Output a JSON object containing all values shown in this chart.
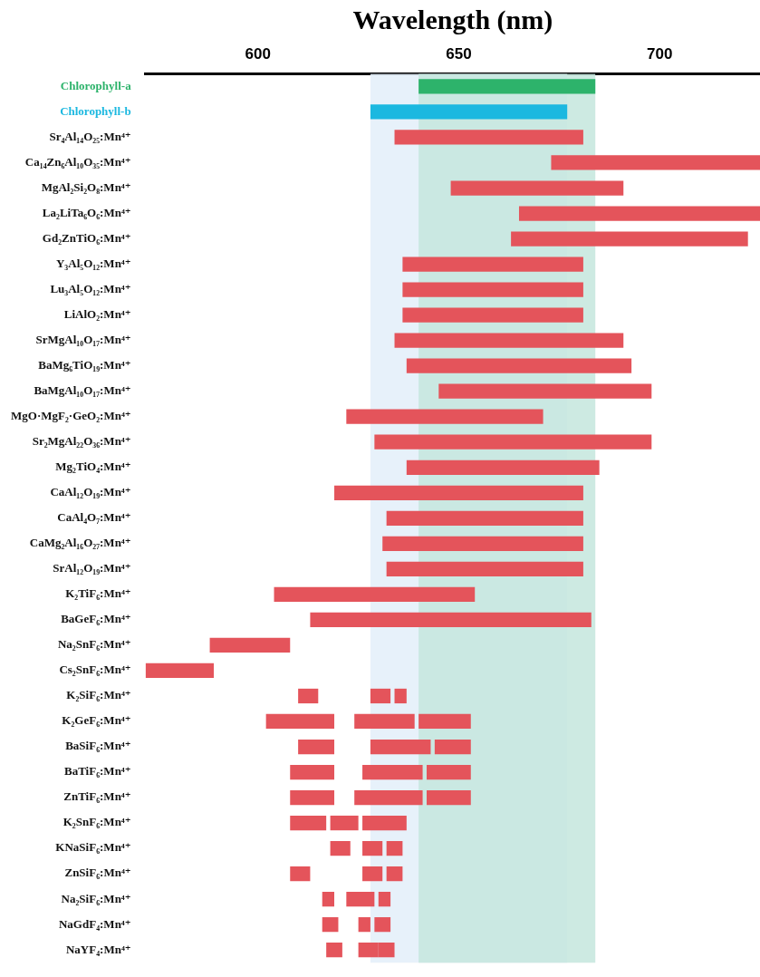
{
  "chart_data": {
    "type": "bar",
    "orientation": "horizontal",
    "xlabel": "Wavelength (nm)",
    "xlim": [
      572,
      725
    ],
    "xticks": [
      600,
      650,
      700
    ],
    "grid": false,
    "legend": false,
    "categories": [
      "Chlorophyll-a",
      "Chlorophyll-b",
      "Sr₄Al₁₄O₂₅:Mn⁴⁺",
      "Ca₁₄Zn₆Al₁₀O₃₅:Mn⁴⁺",
      "MgAl₂Si₂O₈:Mn⁴⁺",
      "La₂LiTa₆O₆:Mn⁴⁺",
      "Gd₂ZnTiO₆:Mn⁴⁺",
      "Y₃Al₅O₁₂:Mn⁴⁺",
      "Lu₃Al₅O₁₂:Mn⁴⁺",
      "LiAlO₂:Mn⁴⁺",
      "SrMgAl₁₀O₁₇:Mn⁴⁺",
      "BaMg₆TiO₁₉:Mn⁴⁺",
      "BaMgAl₁₀O₁₇:Mn⁴⁺",
      "MgO·MgF₂·GeO₂:Mn⁴⁺",
      "Sr₂MgAl₂₂O₃₆:Mn⁴⁺",
      "Mg₂TiO₄:Mn⁴⁺",
      "CaAl₁₂O₁₉:Mn⁴⁺",
      "CaAl₄O₇:Mn⁴⁺",
      "CaMg₂Al₁₆O₂₇:Mn⁴⁺",
      "SrAl₁₂O₁₉:Mn⁴⁺",
      "K₂TiF₆:Mn⁴⁺",
      "BaGeF₆:Mn⁴⁺",
      "Na₂SnF₆:Mn⁴⁺",
      "Cs₂SnF₆:Mn⁴⁺",
      "K₂SiF₆:Mn⁴⁺",
      "K₂GeF₆:Mn⁴⁺",
      "BaSiF₆:Mn⁴⁺",
      "BaTiF₆:Mn⁴⁺",
      "ZnTiF₆:Mn⁴⁺",
      "K₂SnF₆:Mn⁴⁺",
      "KNaSiF₆:Mn⁴⁺",
      "ZnSiF₆:Mn⁴⁺",
      "Na₂SiF₆:Mn⁴⁺",
      "NaGdF₄:Mn⁴⁺",
      "NaYF₄:Mn⁴⁺"
    ],
    "bands": [
      {
        "axis": "x",
        "from": 628,
        "to": 677,
        "color": "#e3eef9"
      },
      {
        "axis": "x",
        "from": 640,
        "to": 684,
        "color": "#c4e6dd"
      }
    ],
    "series": [
      {
        "color": "#e4545b",
        "colors": [
          "#2db36b",
          "#1bb8e0",
          "#e4545b",
          "#e4545b",
          "#e4545b",
          "#e4545b",
          "#e4545b",
          "#e4545b",
          "#e4545b",
          "#e4545b",
          "#e4545b",
          "#e4545b",
          "#e4545b",
          "#e4545b",
          "#e4545b",
          "#e4545b",
          "#e4545b",
          "#e4545b",
          "#e4545b",
          "#e4545b",
          "#e4545b",
          "#e4545b",
          "#e4545b",
          "#e4545b",
          "#e4545b",
          "#e4545b",
          "#e4545b",
          "#e4545b",
          "#e4545b",
          "#e4545b",
          "#e4545b",
          "#e4545b",
          "#e4545b",
          "#e4545b",
          "#e4545b"
        ],
        "base": [
          640,
          628,
          634,
          673,
          648,
          665,
          663,
          636,
          636,
          636,
          634,
          637,
          645,
          622,
          629,
          637,
          619,
          632,
          631,
          632,
          604,
          613,
          588,
          572,
          610,
          602,
          610,
          608,
          608,
          608,
          618,
          608,
          616,
          616,
          617
        ],
        "values": [
          44,
          49,
          47,
          52,
          43,
          60,
          59,
          45,
          45,
          45,
          57,
          56,
          53,
          49,
          69,
          48,
          62,
          49,
          50,
          49,
          50,
          70,
          20,
          17,
          5,
          17,
          9,
          11,
          11,
          9,
          5,
          5,
          3,
          4,
          4
        ]
      },
      {
        "color": "#e4545b",
        "base": [
          null,
          null,
          null,
          null,
          null,
          null,
          null,
          null,
          null,
          null,
          null,
          null,
          null,
          null,
          null,
          null,
          null,
          null,
          null,
          null,
          null,
          null,
          null,
          null,
          628,
          624,
          628,
          626,
          624,
          618,
          626,
          626,
          622,
          625,
          625
        ],
        "values": [
          null,
          null,
          null,
          null,
          null,
          null,
          null,
          null,
          null,
          null,
          null,
          null,
          null,
          null,
          null,
          null,
          null,
          null,
          null,
          null,
          null,
          null,
          null,
          null,
          5,
          15,
          15,
          15,
          17,
          7,
          5,
          5,
          7,
          3,
          5
        ]
      },
      {
        "color": "#e4545b",
        "base": [
          null,
          null,
          null,
          null,
          null,
          null,
          null,
          null,
          null,
          null,
          null,
          null,
          null,
          null,
          null,
          null,
          null,
          null,
          null,
          null,
          null,
          null,
          null,
          null,
          634,
          640,
          644,
          642,
          642,
          626,
          632,
          632,
          630,
          629,
          630
        ],
        "values": [
          null,
          null,
          null,
          null,
          null,
          null,
          null,
          null,
          null,
          null,
          null,
          null,
          null,
          null,
          null,
          null,
          null,
          null,
          null,
          null,
          null,
          null,
          null,
          null,
          3,
          13,
          9,
          11,
          11,
          11,
          4,
          4,
          3,
          4,
          4
        ]
      }
    ]
  }
}
